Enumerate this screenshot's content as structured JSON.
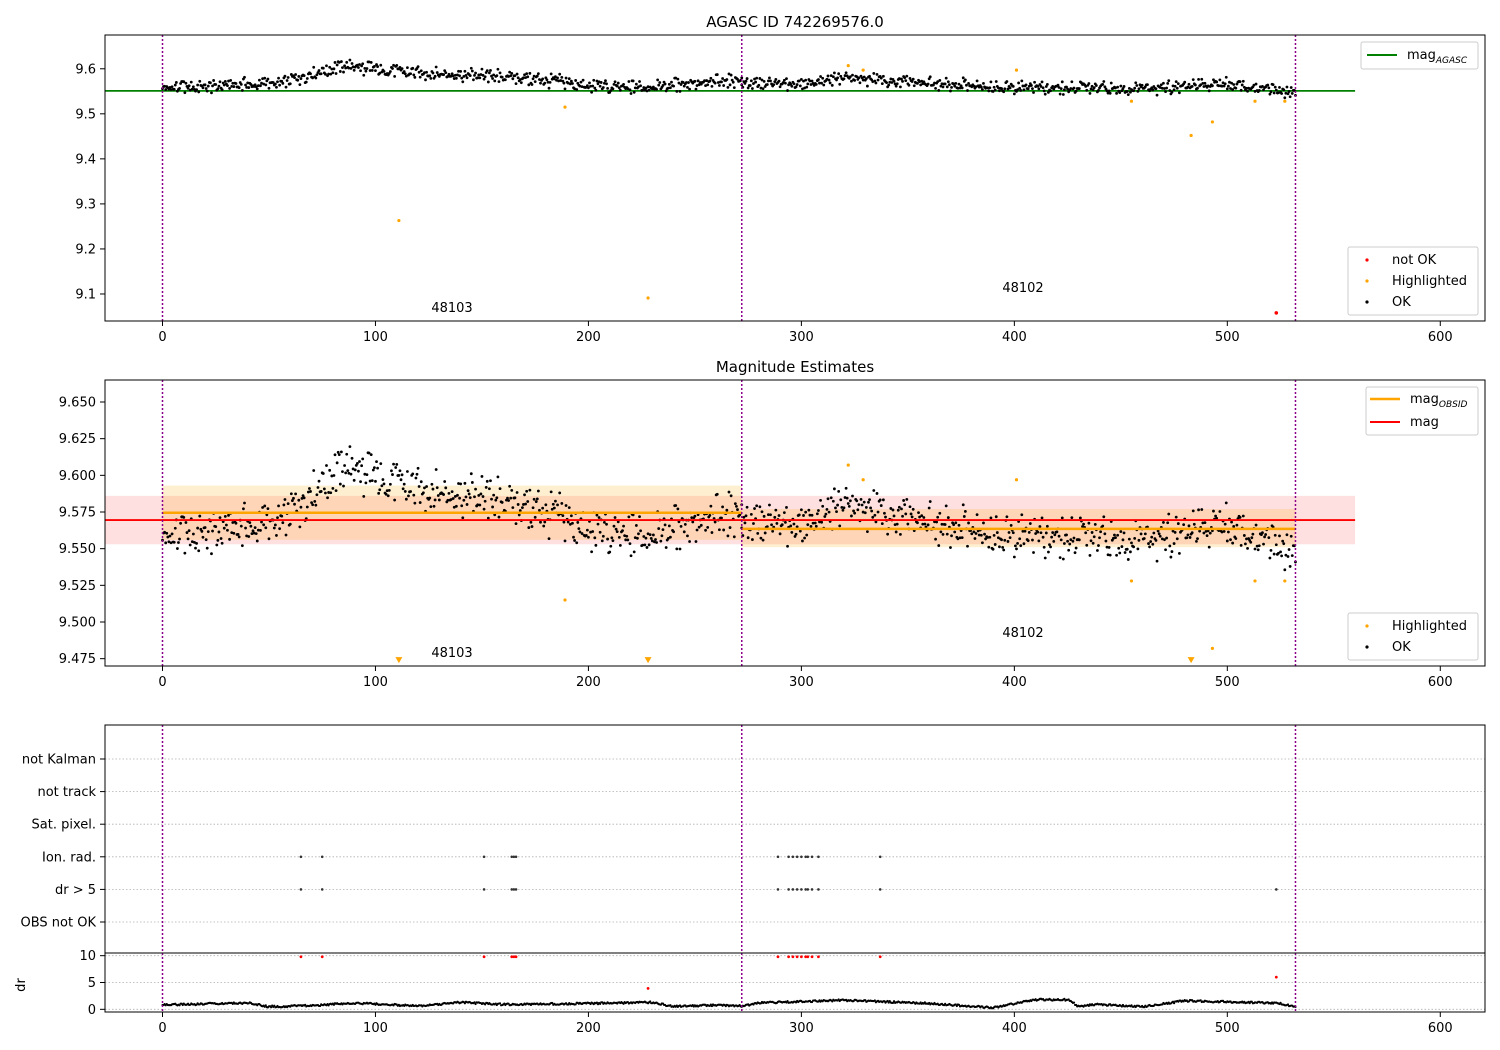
{
  "chart_data": [
    {
      "type": "scatter",
      "title": "AGASC ID 742269576.0",
      "xlim": [
        -27,
        621
      ],
      "ylim": [
        9.04,
        9.675
      ],
      "x_ticks": [
        0,
        100,
        200,
        300,
        400,
        500,
        600
      ],
      "y_ticks": [
        9.1,
        9.2,
        9.3,
        9.4,
        9.5,
        9.6
      ],
      "grid": false,
      "reference_line": {
        "name": "mag_AGASC",
        "y": 9.551,
        "x_range": [
          -27,
          560
        ],
        "color": "#008000"
      },
      "vlines_x": [
        0,
        272,
        532
      ],
      "obsid_labels": [
        {
          "text": "48103",
          "x": 135,
          "y": 9.058
        },
        {
          "text": "48102",
          "x": 401,
          "y": 9.103
        }
      ],
      "series": [
        {
          "name": "OK",
          "color": "#000000",
          "segments": [
            {
              "x_range": [
                0,
                272
              ],
              "shape": [
                [
                  0,
                  9.56
                ],
                [
                  30,
                  9.563
                ],
                [
                  55,
                  9.57
                ],
                [
                  85,
                  9.605
                ],
                [
                  100,
                  9.6
                ],
                [
                  120,
                  9.59
                ],
                [
                  150,
                  9.585
                ],
                [
                  180,
                  9.575
                ],
                [
                  210,
                  9.557
                ],
                [
                  240,
                  9.565
                ],
                [
                  272,
                  9.575
                ]
              ],
              "amp": 0.013,
              "step": 0.5
            },
            {
              "x_range": [
                272,
                532
              ],
              "shape": [
                [
                  272,
                  9.568
                ],
                [
                  300,
                  9.565
                ],
                [
                  320,
                  9.58
                ],
                [
                  350,
                  9.568
                ],
                [
                  400,
                  9.56
                ],
                [
                  450,
                  9.555
                ],
                [
                  480,
                  9.56
                ],
                [
                  500,
                  9.567
                ],
                [
                  532,
                  9.548
                ]
              ],
              "amp": 0.012,
              "step": 0.5
            }
          ]
        },
        {
          "name": "Highlighted",
          "color": "#ffa500",
          "x": [
            111,
            189,
            228,
            322,
            329,
            401,
            455,
            483,
            493,
            513,
            527
          ],
          "y": [
            9.263,
            9.515,
            9.091,
            9.607,
            9.597,
            9.597,
            9.528,
            9.452,
            9.482,
            9.528,
            9.528
          ]
        },
        {
          "name": "not OK",
          "color": "#ff0000",
          "x": [
            523
          ],
          "y": [
            9.058
          ]
        }
      ],
      "legend_top": {
        "placement": "top-right",
        "entries": [
          {
            "label": "mag",
            "subscript": "AGASC"
          }
        ]
      },
      "legend_bottom": {
        "placement": "bottom-right",
        "entries": [
          "not OK",
          "Highlighted",
          "OK"
        ]
      }
    },
    {
      "type": "scatter",
      "title": "Magnitude Estimates",
      "xlim": [
        -27,
        621
      ],
      "ylim": [
        9.47,
        9.665
      ],
      "x_ticks": [
        0,
        100,
        200,
        300,
        400,
        500,
        600
      ],
      "y_ticks": [
        9.475,
        9.5,
        9.525,
        9.55,
        9.575,
        9.6,
        9.625,
        9.65
      ],
      "y_tick_labels": [
        "9.475",
        "9.500",
        "9.525",
        "9.550",
        "9.575",
        "9.600",
        "9.625",
        "9.650"
      ],
      "grid": false,
      "mag_line": {
        "name": "mag",
        "y": 9.5695,
        "band": [
          9.553,
          9.586
        ],
        "x_range": [
          -27,
          560
        ],
        "color": "#ff0000"
      },
      "obsid_lines": [
        {
          "name": "mag_OBSID",
          "x_range": [
            0,
            272
          ],
          "y": 9.5745,
          "band": [
            9.556,
            9.593
          ],
          "color": "#ffa500"
        },
        {
          "name": "mag_OBSID",
          "x_range": [
            272,
            532
          ],
          "y": 9.5635,
          "band": [
            9.551,
            9.577
          ],
          "color": "#ffa500"
        }
      ],
      "vlines_x": [
        0,
        272,
        532
      ],
      "obsid_labels": [
        {
          "text": "48103",
          "x": 135,
          "y": 9.48
        },
        {
          "text": "48102",
          "x": 401,
          "y": 9.493
        }
      ],
      "series": [
        {
          "name": "OK",
          "color": "#000000",
          "same_as_points_of_chart_1": true
        },
        {
          "name": "Highlighted",
          "color": "#ffa500",
          "x": [
            189,
            322,
            329,
            401,
            455,
            493,
            513,
            527
          ],
          "y": [
            9.515,
            9.607,
            9.597,
            9.597,
            9.528,
            9.482,
            9.528,
            9.528
          ]
        },
        {
          "name": "below range",
          "color": "#ffa500",
          "marker": "triangle-down",
          "x": [
            111,
            228,
            483
          ],
          "y": [
            9.474,
            9.474,
            9.474
          ]
        }
      ],
      "legend_top": {
        "placement": "top-right",
        "entries": [
          {
            "label": "mag",
            "subscript": "OBSID"
          },
          {
            "label": "mag",
            "subscript": ""
          }
        ]
      },
      "legend_bottom": {
        "placement": "bottom-right",
        "entries": [
          "Highlighted",
          "OK"
        ]
      }
    },
    {
      "type": "scatter",
      "title": "",
      "xlim": [
        -27,
        621
      ],
      "x_ticks": [
        0,
        100,
        200,
        300,
        400,
        500,
        600
      ],
      "flag_rows": [
        "not Kalman",
        "not track",
        "Sat. pixel.",
        "Ion. rad.",
        "dr > 5",
        "OBS not OK"
      ],
      "flag_points": {
        "Ion. rad.": [
          65,
          75,
          151,
          164,
          165,
          166,
          289,
          294,
          296,
          298,
          300,
          302,
          303,
          305,
          308,
          337
        ],
        "dr > 5": [
          65,
          75,
          151,
          164,
          165,
          166,
          289,
          294,
          296,
          298,
          300,
          302,
          303,
          305,
          308,
          337,
          523
        ]
      },
      "vlines_x": [
        0,
        272,
        532
      ],
      "grid": true
    },
    {
      "type": "scatter",
      "ylabel": "dr",
      "xlim": [
        -27,
        621
      ],
      "ylim": [
        -0.5,
        10.5
      ],
      "x_ticks": [
        0,
        100,
        200,
        300,
        400,
        500,
        600
      ],
      "y_ticks": [
        0,
        5,
        10
      ],
      "grid": true,
      "dr_profile": [
        [
          0,
          0.8
        ],
        [
          40,
          1.2
        ],
        [
          50,
          0.5
        ],
        [
          70,
          0.7
        ],
        [
          90,
          1.2
        ],
        [
          120,
          0.6
        ],
        [
          140,
          1.3
        ],
        [
          160,
          0.9
        ],
        [
          200,
          1.1
        ],
        [
          230,
          1.3
        ],
        [
          240,
          0.5
        ],
        [
          260,
          0.8
        ],
        [
          272,
          0.6
        ],
        [
          280,
          1.2
        ],
        [
          320,
          1.7
        ],
        [
          360,
          1.1
        ],
        [
          390,
          0.3
        ],
        [
          410,
          1.8
        ],
        [
          425,
          1.8
        ],
        [
          430,
          0.6
        ],
        [
          440,
          0.9
        ],
        [
          460,
          0.5
        ],
        [
          480,
          1.6
        ],
        [
          510,
          1.3
        ],
        [
          525,
          1.1
        ],
        [
          532,
          0.4
        ]
      ],
      "red_points": {
        "x": [
          65,
          75,
          151,
          164,
          165,
          166,
          228,
          289,
          294,
          296,
          298,
          300,
          302,
          303,
          305,
          308,
          337,
          523
        ],
        "y": [
          9.8,
          9.8,
          9.8,
          9.8,
          9.8,
          9.8,
          3.9,
          9.8,
          9.8,
          9.8,
          9.8,
          9.8,
          9.8,
          9.8,
          9.8,
          9.8,
          9.8,
          6.0
        ]
      },
      "vlines_x": [
        0,
        272,
        532
      ]
    }
  ],
  "colors": {
    "ok": "#000000",
    "highlighted": "#ffa500",
    "not_ok": "#ff0000",
    "agasc": "#008000",
    "obsid_vline": "#8b008b",
    "grid": "#b0b0b0"
  }
}
